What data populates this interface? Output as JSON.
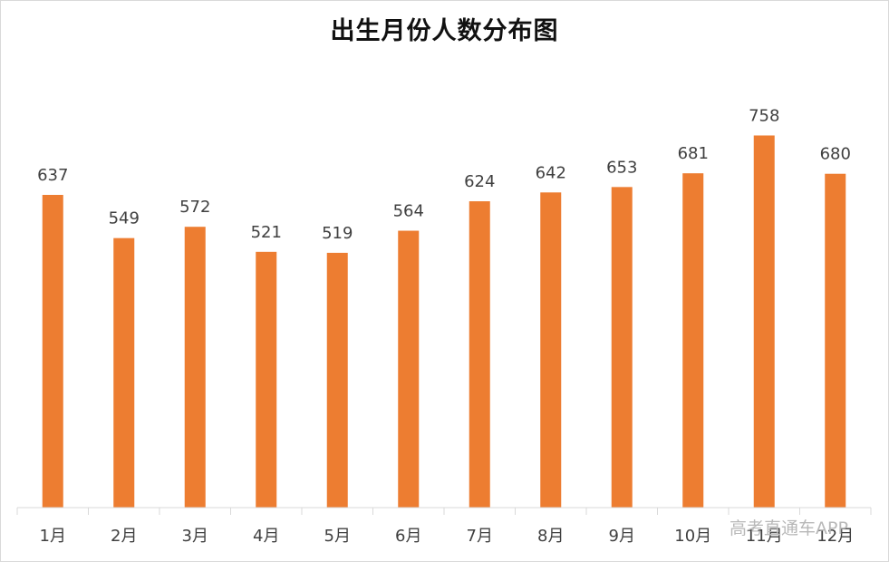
{
  "chart_data": {
    "type": "bar",
    "title": "出生月份人数分布图",
    "categories": [
      "1月",
      "2月",
      "3月",
      "4月",
      "5月",
      "6月",
      "7月",
      "8月",
      "9月",
      "10月",
      "11月",
      "12月"
    ],
    "values": [
      637,
      549,
      572,
      521,
      519,
      564,
      624,
      642,
      653,
      681,
      758,
      680
    ],
    "xlabel": "",
    "ylabel": "",
    "ylim": [
      0,
      800
    ],
    "grid": false,
    "legend": "none",
    "bar_color": "#ED7D31",
    "data_labels": true
  },
  "watermark": "高考直通车APP"
}
